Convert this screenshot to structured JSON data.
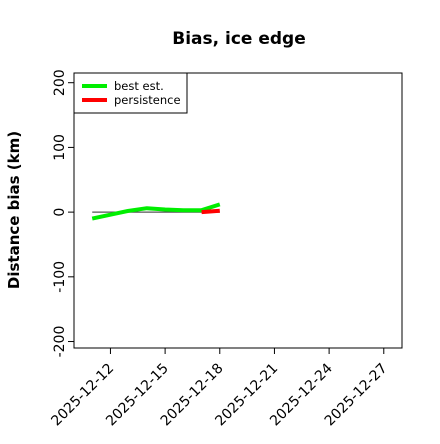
{
  "chart_data": {
    "type": "line",
    "title": "Bias, ice edge",
    "xlabel": "",
    "ylabel": "Distance bias (km)",
    "x_type": "date",
    "xlim": [
      "2025-12-10",
      "2025-12-28"
    ],
    "ylim": [
      -210,
      215
    ],
    "y_ticks": [
      -200,
      -100,
      0,
      100,
      200
    ],
    "x_ticks": [
      "2025-12-12",
      "2025-12-15",
      "2025-12-18",
      "2025-12-21",
      "2025-12-24",
      "2025-12-27"
    ],
    "legend_position": "top-left",
    "grid": false,
    "reference_line": {
      "y": 0,
      "x_start": "2025-12-11",
      "x_end": "2025-12-18",
      "color": "#555555"
    },
    "series": [
      {
        "name": "best est.",
        "color": "#00ee00",
        "x": [
          "2025-12-11",
          "2025-12-12",
          "2025-12-13",
          "2025-12-14",
          "2025-12-15",
          "2025-12-16",
          "2025-12-17",
          "2025-12-18"
        ],
        "y": [
          -10,
          -4,
          2,
          6,
          4,
          3,
          3,
          12
        ]
      },
      {
        "name": "persistence",
        "color": "#ff0000",
        "x": [
          "2025-12-17",
          "2025-12-18"
        ],
        "y": [
          0,
          2
        ]
      }
    ]
  }
}
